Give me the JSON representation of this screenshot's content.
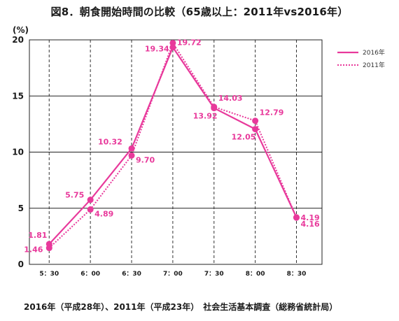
{
  "chart_data": {
    "type": "line",
    "title": "図8．朝食開始時間の比較（65歳以上：2011年vs2016年）",
    "ylabel": "(%)",
    "xlabel": "",
    "categories": [
      "5：30",
      "6：00",
      "6：30",
      "7：00",
      "7：30",
      "8：00",
      "8：30"
    ],
    "ylim": [
      0,
      20
    ],
    "yticks": [
      0,
      5,
      10,
      15,
      20
    ],
    "grid": "horizontal solid, vertical dashed",
    "legend_position": "top-right",
    "series": [
      {
        "name": "2016年",
        "style": "solid",
        "color": "#e8399b",
        "values": [
          1.81,
          5.75,
          10.32,
          19.34,
          13.92,
          12.05,
          4.19
        ]
      },
      {
        "name": "2011年",
        "style": "dotted",
        "color": "#e8399b",
        "values": [
          1.46,
          4.89,
          9.7,
          19.72,
          14.03,
          12.79,
          4.16
        ]
      }
    ]
  },
  "source": "2016年（平成28年）、2011年（平成23年）　社会生活基本調査（総務省統計局）"
}
